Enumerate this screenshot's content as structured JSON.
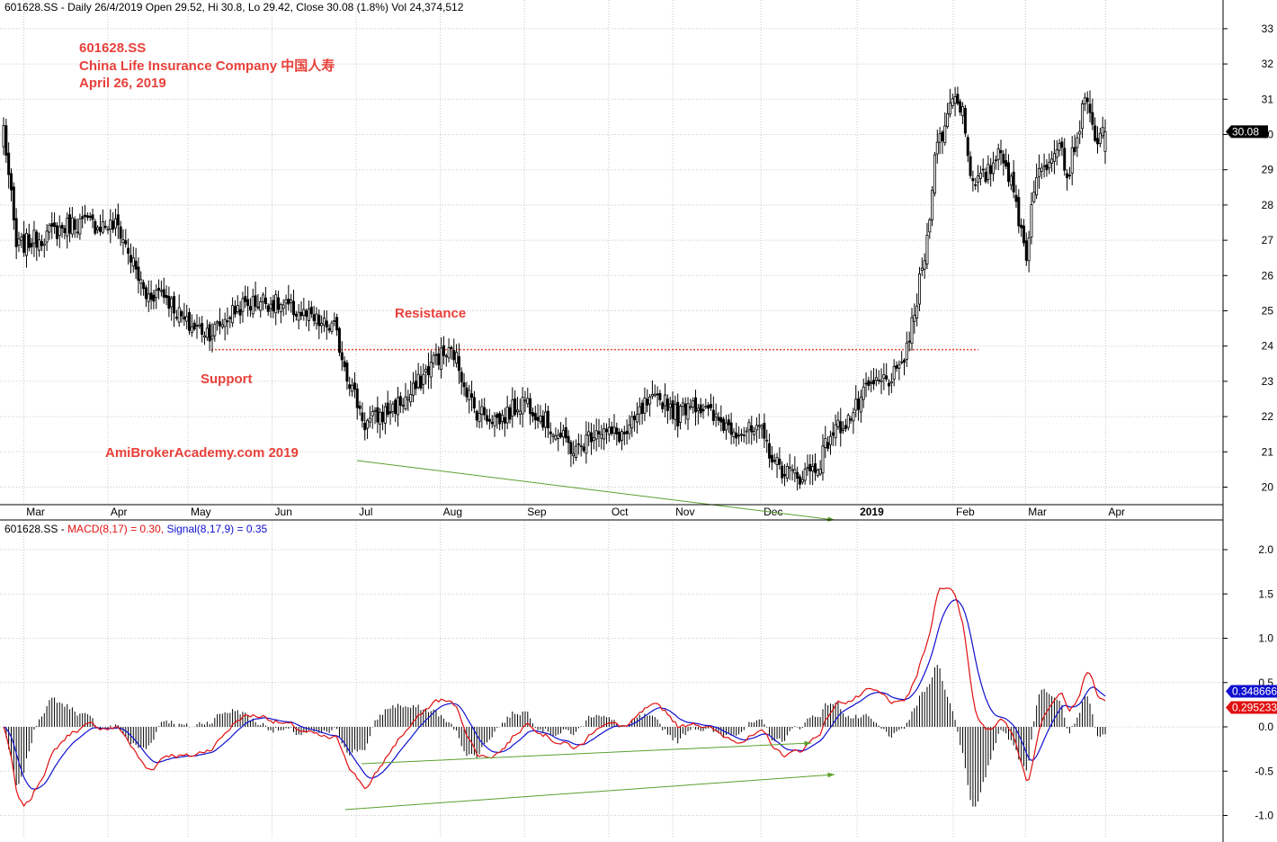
{
  "symbol": "601628.SS",
  "price_header": {
    "symbol": "601628.SS",
    "text": "- Daily 26/4/2019 Open 29.52, Hi 30.8, Lo 29.42, Close 30.08 (1.8%) Vol 24,374,512"
  },
  "macd_header": {
    "symbol": "601628.SS -",
    "macd_text": "MACD(8,17) = 0.30,",
    "signal_text": "Signal(8,17,9) = 0.35"
  },
  "annotations": {
    "title_symbol": "601628.SS",
    "company": "China Life Insurance Company  中国人寿",
    "date": "April 26, 2019",
    "resistance": "Resistance",
    "support": "Support",
    "watermark": "AmiBrokerAcademy.com  2019"
  },
  "colors": {
    "annotation": "#e8413a",
    "macd": "#e01010",
    "signal": "#1010d0",
    "trendline": "#5aa02c",
    "support_line": "#e84a3a",
    "grid": "#c8c8c8"
  },
  "chart_data": [
    {
      "type": "candlestick",
      "title": "601628.SS - Daily 26/4/2019",
      "x_tick_labels": [
        "Mar",
        "Apr",
        "May",
        "Jun",
        "Jul",
        "Aug",
        "Sep",
        "Oct",
        "Nov",
        "Dec",
        "2019",
        "Feb",
        "Mar",
        "Apr"
      ],
      "y_ticks": [
        20,
        21,
        22,
        23,
        24,
        25,
        26,
        27,
        28,
        29,
        30,
        31,
        32,
        33
      ],
      "ylim": [
        19.5,
        33.3
      ],
      "last_close": 30.08,
      "last_close_label": "30.08",
      "support_resistance_level": 23.9,
      "keypoints": [
        [
          0,
          30.2
        ],
        [
          5,
          26.8
        ],
        [
          28,
          27.5
        ],
        [
          45,
          27.4
        ],
        [
          56,
          25.4
        ],
        [
          62,
          25.6
        ],
        [
          72,
          24.6
        ],
        [
          82,
          24.4
        ],
        [
          92,
          25.1
        ],
        [
          102,
          25.3
        ],
        [
          115,
          25.0
        ],
        [
          125,
          24.6
        ],
        [
          130,
          24.5
        ],
        [
          136,
          23.0
        ],
        [
          142,
          21.8
        ],
        [
          150,
          22.1
        ],
        [
          160,
          22.6
        ],
        [
          170,
          23.7
        ],
        [
          177,
          23.8
        ],
        [
          185,
          22.2
        ],
        [
          195,
          21.9
        ],
        [
          205,
          22.5
        ],
        [
          215,
          21.7
        ],
        [
          225,
          21.0
        ],
        [
          233,
          21.7
        ],
        [
          238,
          21.5
        ],
        [
          245,
          21.5
        ],
        [
          252,
          22.3
        ],
        [
          260,
          22.5
        ],
        [
          265,
          22.0
        ],
        [
          270,
          22.5
        ],
        [
          280,
          21.9
        ],
        [
          290,
          21.6
        ],
        [
          298,
          21.5
        ],
        [
          304,
          20.6
        ],
        [
          312,
          20.3
        ],
        [
          320,
          20.6
        ],
        [
          325,
          21.5
        ],
        [
          333,
          22.0
        ],
        [
          340,
          22.8
        ],
        [
          345,
          23.0
        ],
        [
          352,
          23.2
        ],
        [
          358,
          24.8
        ],
        [
          360,
          25.8
        ],
        [
          363,
          27.0
        ],
        [
          366,
          29.5
        ],
        [
          370,
          30.2
        ],
        [
          373,
          31.2
        ],
        [
          377,
          30.7
        ],
        [
          381,
          28.5
        ],
        [
          387,
          28.9
        ],
        [
          392,
          29.7
        ],
        [
          398,
          28.0
        ],
        [
          402,
          26.6
        ],
        [
          405,
          28.6
        ],
        [
          410,
          29.2
        ],
        [
          415,
          30.0
        ],
        [
          418,
          28.8
        ],
        [
          422,
          30.0
        ],
        [
          426,
          31.2
        ],
        [
          428,
          30.1
        ],
        [
          431,
          29.8
        ],
        [
          433,
          30.08
        ]
      ]
    },
    {
      "type": "line",
      "title": "MACD(8,17) / Signal(8,17,9)",
      "series": [
        {
          "name": "MACD(8,17)",
          "last": 0.3,
          "last_label": "0.295233"
        },
        {
          "name": "Signal(8,17,9)",
          "last": 0.35,
          "last_label": "0.348666"
        }
      ],
      "histogram": "MACD - Signal",
      "y_ticks": [
        -1.0,
        -0.5,
        0.0,
        0.5,
        1.0,
        1.5,
        2.0
      ],
      "y_tick_labels": [
        "-1.0",
        "-0.5",
        "0.0",
        "0.5",
        "1.0",
        "1.5",
        "2.0"
      ],
      "ylim": [
        -1.3,
        2.2
      ]
    }
  ]
}
